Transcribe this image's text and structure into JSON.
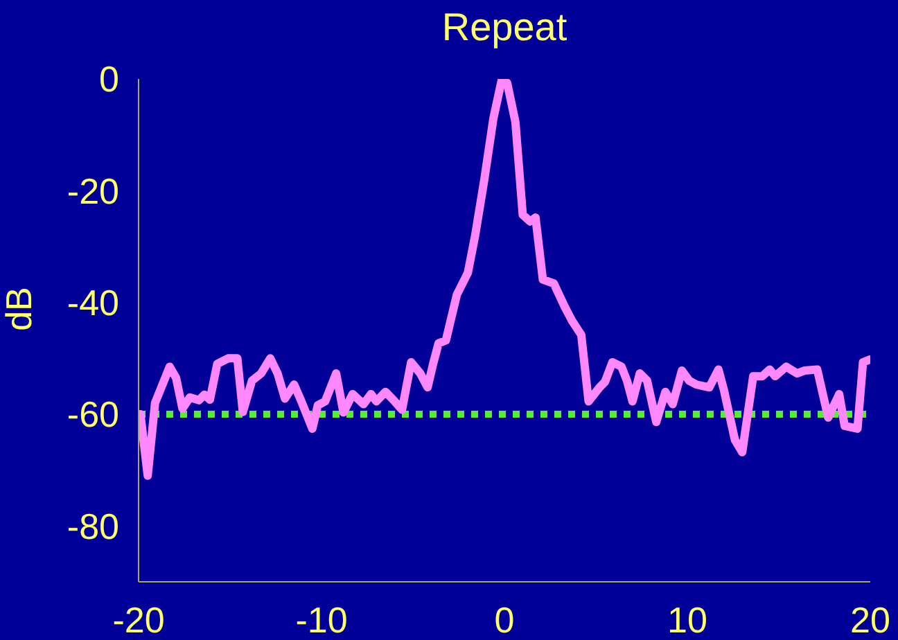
{
  "chart_data": {
    "type": "line",
    "title": "Repeat",
    "ylabel": "dB",
    "x": [
      -19.9,
      -19.5,
      -19.1,
      -18.3,
      -17.95,
      -17.6,
      -17.2,
      -16.7,
      -16.4,
      -16.1,
      -15.7,
      -15.1,
      -14.6,
      -14.3,
      -13.8,
      -13.3,
      -12.8,
      -12.4,
      -12.0,
      -11.5,
      -11.1,
      -10.5,
      -10.2,
      -9.8,
      -9.2,
      -8.8,
      -8.3,
      -7.7,
      -7.3,
      -7.0,
      -6.5,
      -6.0,
      -5.6,
      -5.1,
      -4.6,
      -4.2,
      -3.9,
      -3.6,
      -3.2,
      -2.6,
      -2.0,
      -1.6,
      -1.1,
      -0.6,
      -0.15,
      0.15,
      0.6,
      1.0,
      1.4,
      1.7,
      2.1,
      2.7,
      3.3,
      3.7,
      4.2,
      4.6,
      5.2,
      5.5,
      5.9,
      6.4,
      6.7,
      7.0,
      7.4,
      7.8,
      8.3,
      8.8,
      9.2,
      9.7,
      10.1,
      10.5,
      11.2,
      11.7,
      12.0,
      12.6,
      13.0,
      13.6,
      14.1,
      14.5,
      14.8,
      15.4,
      16.0,
      16.4,
      17.1,
      17.7,
      18.3,
      18.6,
      19.3,
      19.6,
      20
    ],
    "series": [
      {
        "color": "#ff88ff",
        "values": [
          -60,
          -71,
          -58,
          -51.5,
          -53.5,
          -59,
          -57,
          -57.5,
          -56.5,
          -57.4,
          -51,
          -50,
          -50,
          -59.6,
          -54,
          -52.7,
          -50,
          -52.7,
          -57.2,
          -54.7,
          -57.7,
          -62.6,
          -58.4,
          -57.7,
          -52.7,
          -59.7,
          -56.4,
          -58.2,
          -56.4,
          -57.7,
          -56,
          -57.7,
          -59.2,
          -50.7,
          -52.7,
          -55.2,
          -51,
          -47.3,
          -46.8,
          -38.6,
          -34.7,
          -28,
          -18,
          -7,
          -0.2,
          -0.7,
          -7.7,
          -24.3,
          -25.5,
          -24.8,
          -35.9,
          -36.6,
          -40.8,
          -43.3,
          -45.8,
          -57.7,
          -55.2,
          -54.2,
          -50.7,
          -51.5,
          -54,
          -57.7,
          -52.7,
          -54,
          -61.4,
          -56,
          -58.2,
          -52.2,
          -54,
          -54.7,
          -55.2,
          -52,
          -55.7,
          -64.6,
          -66.8,
          -53.2,
          -53.2,
          -52,
          -53.2,
          -51.5,
          -52.7,
          -52.2,
          -52,
          -60.6,
          -56.4,
          -62.1,
          -62.6,
          -50.7,
          -50.2
        ]
      }
    ],
    "xlim": [
      -20,
      20
    ],
    "xticks": [
      -20,
      -10,
      0,
      10,
      20
    ],
    "ylim": [
      -90,
      0
    ],
    "yticks": [
      -80,
      -60,
      -40,
      -20,
      0
    ],
    "ref_lines": [
      {
        "axis": "y",
        "value": -60,
        "color": "#55ee33",
        "line_style": "dotted"
      }
    ],
    "grid": false,
    "legend": false,
    "marker": "none",
    "line_style": "solid"
  }
}
